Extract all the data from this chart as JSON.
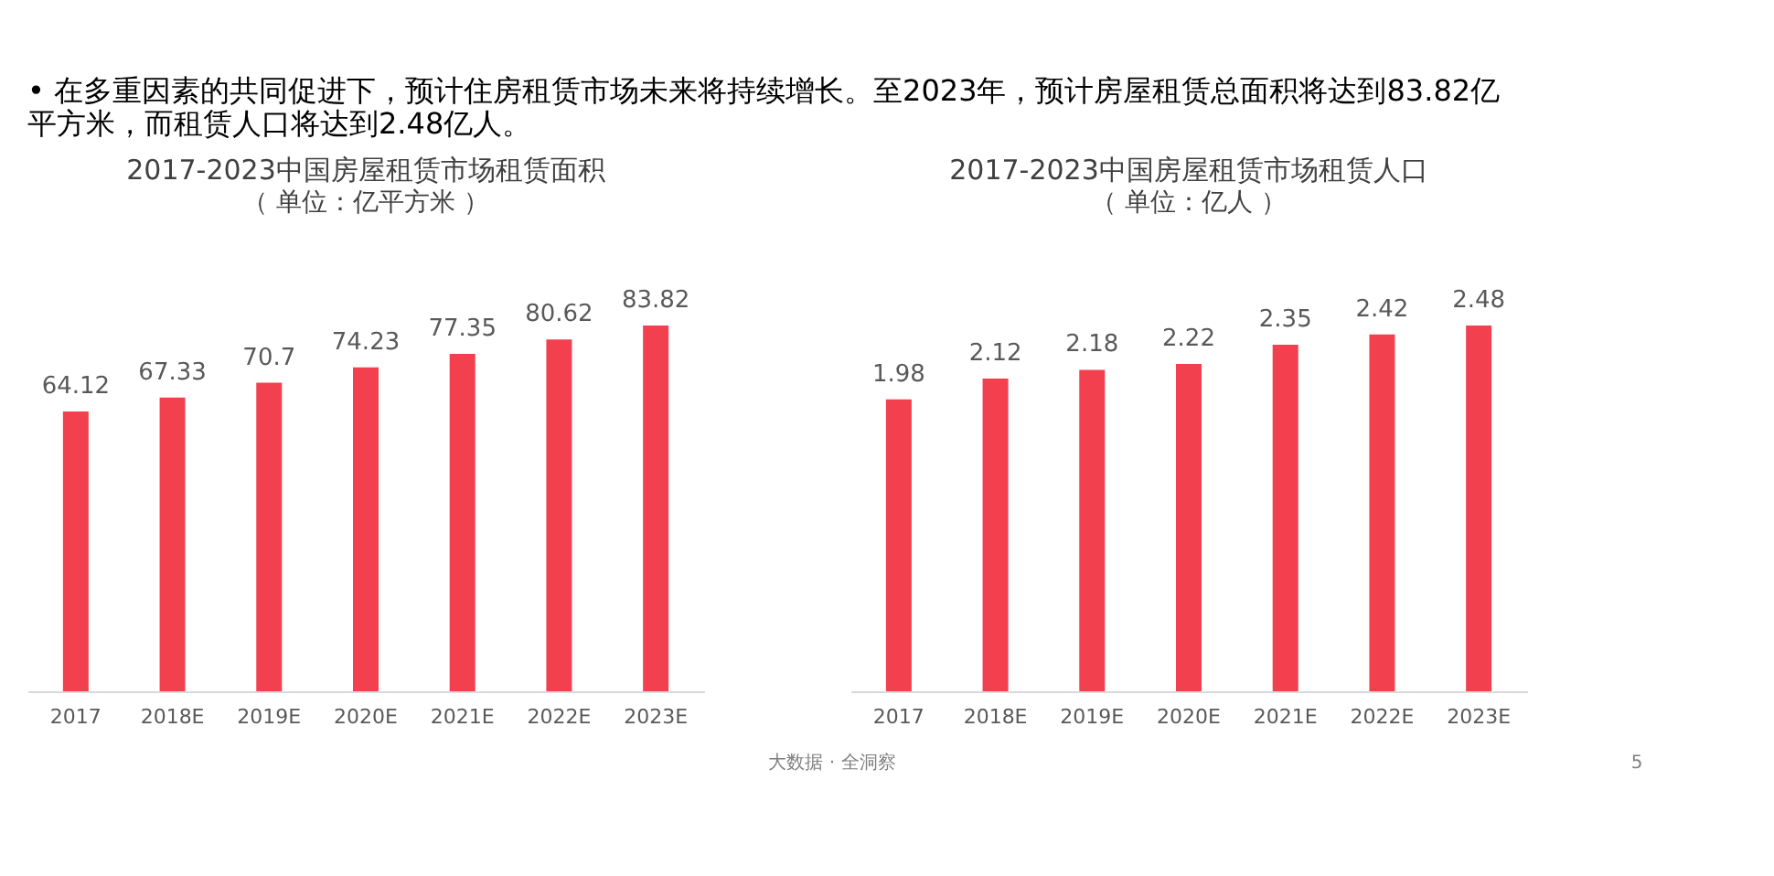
{
  "chart_data": [
    {
      "type": "bar",
      "title": "2017-2023中国房屋租赁市场租赁面积",
      "subtitle": "（ 单位：亿平方米 ）",
      "categories": [
        "2017",
        "2018E",
        "2019E",
        "2020E",
        "2021E",
        "2022E",
        "2023E"
      ],
      "values": [
        64.12,
        67.33,
        70.7,
        74.23,
        77.35,
        80.62,
        83.82
      ],
      "color": "#f2404f",
      "data_labels": true,
      "annotations": [
        "•   在多重因素的共同促进下，预计住房租赁市场未来将持续增长。至2023年，预计房屋租赁总面积将达到83.82亿平方米，而租赁人口将达到2.48亿人。"
      ]
    },
    {
      "type": "bar",
      "title": "2017-2023中国房屋租赁市场租赁人口",
      "subtitle": "（ 单位：亿人 ）",
      "categories": [
        "2017",
        "2018E",
        "2019E",
        "2020E",
        "2021E",
        "2022E",
        "2023E"
      ],
      "values": [
        1.98,
        2.12,
        2.18,
        2.22,
        2.35,
        2.42,
        2.48
      ],
      "color": "#f2404f",
      "data_labels": true,
      "annotations": [
        "大数据 · 全洞察",
        "5"
      ]
    }
  ]
}
